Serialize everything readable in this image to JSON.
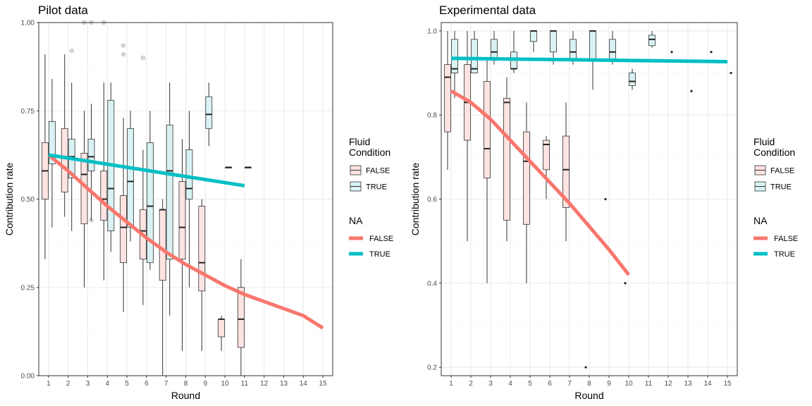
{
  "chart_data": [
    {
      "type": "boxplot",
      "title": "Pilot data",
      "xlabel": "Round",
      "ylabel": "Contribution rate",
      "xlim": [
        0.5,
        15.5
      ],
      "ylim": [
        0,
        1.0
      ],
      "x_ticks": [
        "1",
        "2",
        "3",
        "4",
        "5",
        "6",
        "7",
        "8",
        "9",
        "10",
        "11",
        "12",
        "13",
        "14",
        "15"
      ],
      "y_ticks": [
        0,
        0.25,
        0.5,
        0.75,
        1.0
      ],
      "y_tick_labels": [
        "0.00",
        "0.25",
        "0.50",
        "0.75",
        "1.00"
      ],
      "grid": true,
      "legend_position": "right",
      "boxes": [
        {
          "condition": "FALSE",
          "x": 1,
          "min": 0.33,
          "q1": 0.5,
          "median": 0.58,
          "q3": 0.66,
          "max": 0.91
        },
        {
          "condition": "TRUE",
          "x": 1,
          "min": 0.42,
          "q1": 0.6,
          "median": 0.62,
          "q3": 0.72,
          "max": 0.84
        },
        {
          "condition": "FALSE",
          "x": 2,
          "min": 0.45,
          "q1": 0.52,
          "median": 0.62,
          "q3": 0.7,
          "max": 0.91
        },
        {
          "condition": "TRUE",
          "x": 2,
          "min": 0.41,
          "q1": 0.56,
          "median": 0.62,
          "q3": 0.67,
          "max": 0.83
        },
        {
          "condition": "FALSE",
          "x": 3,
          "min": 0.25,
          "q1": 0.43,
          "median": 0.57,
          "q3": 0.63,
          "max": 0.75
        },
        {
          "condition": "TRUE",
          "x": 3,
          "min": 0.44,
          "q1": 0.58,
          "median": 0.62,
          "q3": 0.67,
          "max": 0.77
        },
        {
          "condition": "FALSE",
          "x": 4,
          "min": 0.27,
          "q1": 0.44,
          "median": 0.5,
          "q3": 0.58,
          "max": 0.83
        },
        {
          "condition": "TRUE",
          "x": 4,
          "min": 0.35,
          "q1": 0.41,
          "median": 0.53,
          "q3": 0.78,
          "max": 0.83
        },
        {
          "condition": "FALSE",
          "x": 5,
          "min": 0.18,
          "q1": 0.32,
          "median": 0.42,
          "q3": 0.51,
          "max": 0.73
        },
        {
          "condition": "TRUE",
          "x": 5,
          "min": 0.38,
          "q1": 0.42,
          "median": 0.55,
          "q3": 0.7,
          "max": 0.75
        },
        {
          "condition": "FALSE",
          "x": 6,
          "min": 0.2,
          "q1": 0.33,
          "median": 0.41,
          "q3": 0.47,
          "max": 0.64
        },
        {
          "condition": "TRUE",
          "x": 6,
          "min": 0.3,
          "q1": 0.32,
          "median": 0.48,
          "q3": 0.66,
          "max": 0.75
        },
        {
          "condition": "FALSE",
          "x": 7,
          "min": 0.0,
          "q1": 0.27,
          "median": 0.47,
          "q3": 0.47,
          "max": 0.5
        },
        {
          "condition": "TRUE",
          "x": 7,
          "min": 0.17,
          "q1": 0.33,
          "median": 0.58,
          "q3": 0.71,
          "max": 0.83
        },
        {
          "condition": "FALSE",
          "x": 8,
          "min": 0.07,
          "q1": 0.33,
          "median": 0.42,
          "q3": 0.55,
          "max": 0.67
        },
        {
          "condition": "TRUE",
          "x": 8,
          "min": 0.25,
          "q1": 0.5,
          "median": 0.53,
          "q3": 0.64,
          "max": 0.75
        },
        {
          "condition": "FALSE",
          "x": 9,
          "min": 0.07,
          "q1": 0.24,
          "median": 0.32,
          "q3": 0.48,
          "max": 0.5
        },
        {
          "condition": "TRUE",
          "x": 9,
          "min": 0.65,
          "q1": 0.7,
          "median": 0.74,
          "q3": 0.79,
          "max": 0.83
        },
        {
          "condition": "FALSE",
          "x": 10,
          "min": 0.07,
          "q1": 0.11,
          "median": 0.16,
          "q3": 0.16,
          "max": 0.17
        },
        {
          "condition": "TRUE",
          "x": 10,
          "min": 0.59,
          "q1": 0.59,
          "median": 0.59,
          "q3": 0.59,
          "max": 0.59
        },
        {
          "condition": "FALSE",
          "x": 11,
          "min": 0.0,
          "q1": 0.08,
          "median": 0.16,
          "q3": 0.25,
          "max": 0.33
        },
        {
          "condition": "TRUE",
          "x": 11,
          "min": 0.59,
          "q1": 0.59,
          "median": 0.59,
          "q3": 0.59,
          "max": 0.59
        }
      ],
      "outliers": [
        {
          "condition": "TRUE",
          "x": 2,
          "y": 0.92
        },
        {
          "condition": "FALSE",
          "x": 3,
          "y": 1.0
        },
        {
          "condition": "TRUE",
          "x": 3,
          "y": 1.0
        },
        {
          "condition": "TRUE",
          "x": 3,
          "y": 0.44
        },
        {
          "condition": "FALSE",
          "x": 4,
          "y": 1.0
        },
        {
          "condition": "FALSE",
          "x": 5,
          "y": 0.935
        },
        {
          "condition": "FALSE",
          "x": 5,
          "y": 0.91
        },
        {
          "condition": "FALSE",
          "x": 6,
          "y": 0.9
        }
      ],
      "trend_lines": [
        {
          "name": "FALSE",
          "x": [
            1,
            2,
            3,
            4,
            5,
            6,
            7,
            8,
            9,
            10,
            11,
            12,
            13,
            14,
            15
          ],
          "y": [
            0.625,
            0.58,
            0.53,
            0.48,
            0.435,
            0.39,
            0.35,
            0.315,
            0.285,
            0.255,
            0.23,
            0.21,
            0.19,
            0.17,
            0.135
          ]
        },
        {
          "name": "TRUE",
          "x": [
            1,
            11
          ],
          "y": [
            0.625,
            0.538
          ]
        }
      ]
    },
    {
      "type": "boxplot",
      "title": "Experimental data",
      "xlabel": "Round",
      "ylabel": "Contribution rate",
      "xlim": [
        0.5,
        15.5
      ],
      "ylim": [
        0.18,
        1.02
      ],
      "x_ticks": [
        "1",
        "2",
        "3",
        "4",
        "5",
        "6",
        "7",
        "8",
        "9",
        "10",
        "11",
        "12",
        "13",
        "14",
        "15"
      ],
      "y_ticks": [
        0.2,
        0.4,
        0.6,
        0.8,
        1.0
      ],
      "y_tick_labels": [
        "0.2",
        "0.4",
        "0.6",
        "0.8",
        "1.0"
      ],
      "grid": true,
      "legend_position": "right",
      "boxes": [
        {
          "condition": "FALSE",
          "x": 1,
          "min": 0.67,
          "q1": 0.76,
          "median": 0.89,
          "q3": 0.92,
          "max": 1.0
        },
        {
          "condition": "TRUE",
          "x": 1,
          "min": 0.84,
          "q1": 0.9,
          "median": 0.91,
          "q3": 0.98,
          "max": 1.0
        },
        {
          "condition": "FALSE",
          "x": 2,
          "min": 0.5,
          "q1": 0.74,
          "median": 0.83,
          "q3": 0.92,
          "max": 1.0
        },
        {
          "condition": "TRUE",
          "x": 2,
          "min": 0.9,
          "q1": 0.9,
          "median": 0.91,
          "q3": 0.98,
          "max": 1.0
        },
        {
          "condition": "FALSE",
          "x": 3,
          "min": 0.4,
          "q1": 0.65,
          "median": 0.72,
          "q3": 0.88,
          "max": 0.93
        },
        {
          "condition": "TRUE",
          "x": 3,
          "min": 0.92,
          "q1": 0.93,
          "median": 0.95,
          "q3": 0.98,
          "max": 1.0
        },
        {
          "condition": "FALSE",
          "x": 4,
          "min": 0.5,
          "q1": 0.55,
          "median": 0.83,
          "q3": 0.84,
          "max": 0.89
        },
        {
          "condition": "TRUE",
          "x": 4,
          "min": 0.9,
          "q1": 0.91,
          "median": 0.91,
          "q3": 0.95,
          "max": 1.0
        },
        {
          "condition": "FALSE",
          "x": 5,
          "min": 0.4,
          "q1": 0.54,
          "median": 0.69,
          "q3": 0.76,
          "max": 0.83
        },
        {
          "condition": "TRUE",
          "x": 5,
          "min": 0.95,
          "q1": 0.975,
          "median": 1.0,
          "q3": 1.0,
          "max": 1.0
        },
        {
          "condition": "FALSE",
          "x": 6,
          "min": 0.6,
          "q1": 0.67,
          "median": 0.73,
          "q3": 0.74,
          "max": 0.75
        },
        {
          "condition": "TRUE",
          "x": 6,
          "min": 0.92,
          "q1": 0.95,
          "median": 1.0,
          "q3": 1.0,
          "max": 1.0
        },
        {
          "condition": "FALSE",
          "x": 7,
          "min": 0.5,
          "q1": 0.58,
          "median": 0.67,
          "q3": 0.75,
          "max": 0.83
        },
        {
          "condition": "TRUE",
          "x": 7,
          "min": 0.92,
          "q1": 0.93,
          "median": 0.95,
          "q3": 0.98,
          "max": 1.0
        },
        {
          "condition": "TRUE",
          "x": 8,
          "min": 0.86,
          "q1": 0.93,
          "median": 1.0,
          "q3": 1.0,
          "max": 1.0
        },
        {
          "condition": "TRUE",
          "x": 9,
          "min": 0.92,
          "q1": 0.93,
          "median": 0.95,
          "q3": 0.98,
          "max": 1.0
        },
        {
          "condition": "TRUE",
          "x": 10,
          "min": 0.86,
          "q1": 0.87,
          "median": 0.88,
          "q3": 0.9,
          "max": 0.91
        },
        {
          "condition": "TRUE",
          "x": 11,
          "min": 0.96,
          "q1": 0.965,
          "median": 0.98,
          "q3": 0.99,
          "max": 1.0
        }
      ],
      "outliers": [
        {
          "condition": "FALSE",
          "x": 8,
          "y": 0.2
        },
        {
          "condition": "FALSE",
          "x": 9,
          "y": 0.6
        },
        {
          "condition": "FALSE",
          "x": 10,
          "y": 0.4
        },
        {
          "condition": "TRUE",
          "x": 12,
          "y": 0.95
        },
        {
          "condition": "TRUE",
          "x": 13,
          "y": 0.857
        },
        {
          "condition": "TRUE",
          "x": 14,
          "y": 0.95
        },
        {
          "condition": "TRUE",
          "x": 15,
          "y": 0.9
        }
      ],
      "trend_lines": [
        {
          "name": "FALSE",
          "x": [
            1,
            2,
            3,
            4,
            5,
            6,
            7,
            8,
            9,
            10
          ],
          "y": [
            0.857,
            0.83,
            0.79,
            0.74,
            0.69,
            0.64,
            0.59,
            0.535,
            0.48,
            0.42
          ]
        },
        {
          "name": "TRUE",
          "x": [
            1,
            15
          ],
          "y": [
            0.935,
            0.927
          ]
        }
      ]
    }
  ],
  "legend": {
    "fill_title_line1": "Fluid",
    "fill_title_line2": "Condition",
    "fill_items": [
      "FALSE",
      "TRUE"
    ],
    "line_title": "NA",
    "line_items": [
      "FALSE",
      "TRUE"
    ]
  },
  "colors": {
    "false_line": "#F8766D",
    "true_line": "#00BFC4",
    "false_fill": "#FDE3E1",
    "true_fill": "#D9F2F3",
    "box_stroke": "#333333",
    "grid": "#EBEBEB",
    "panel_border": "#333333"
  }
}
